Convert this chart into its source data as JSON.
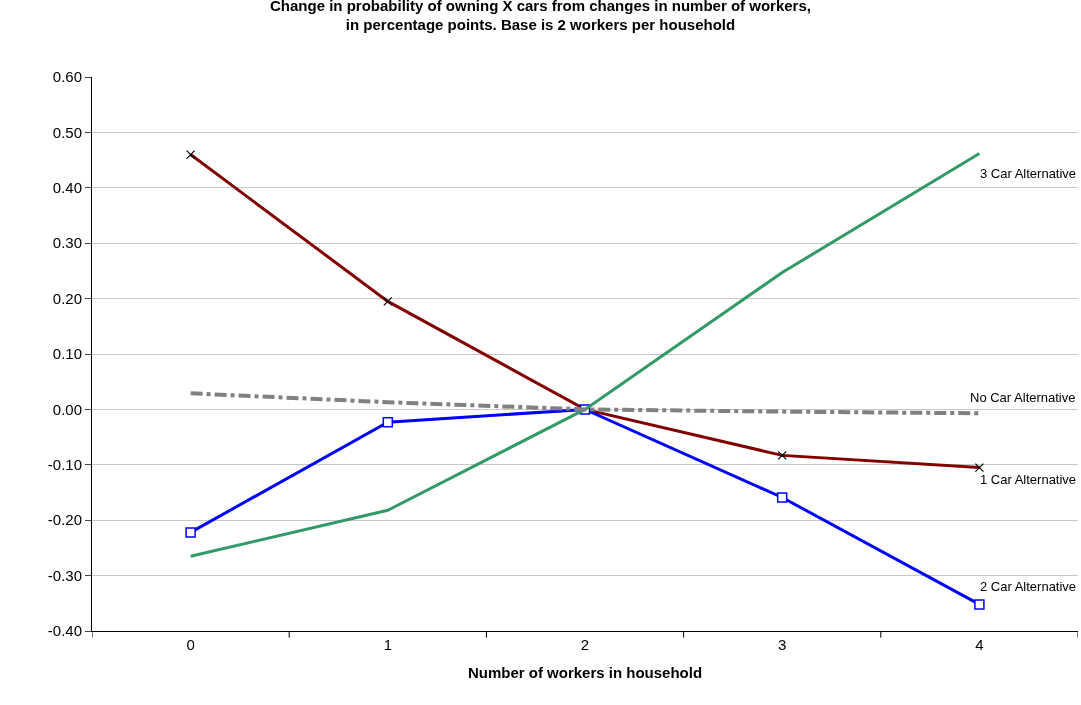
{
  "chart_data": {
    "type": "line",
    "title": "Change in probability of owning X cars from changes in number of workers,\nin percentage points. Base is 2 workers per household",
    "xlabel": "Number of workers in household",
    "categories": [
      "0",
      "1",
      "2",
      "3",
      "4"
    ],
    "series": [
      {
        "name": "1 Car Alternative",
        "color": "#800000",
        "marker": "cross",
        "line_style": "solid",
        "values": [
          0.46,
          0.195,
          0.0,
          -0.083,
          -0.105
        ]
      },
      {
        "name": "2 Car Alternative",
        "color": "#0000ff",
        "marker": "square",
        "line_style": "solid",
        "values": [
          -0.222,
          -0.023,
          0.0,
          -0.159,
          -0.352
        ]
      },
      {
        "name": "3 Car Alternative",
        "color": "#339966",
        "marker": "none",
        "line_style": "solid",
        "values": [
          -0.265,
          -0.182,
          0.0,
          0.247,
          0.462
        ]
      },
      {
        "name": "No Car Alternative",
        "color": "#808080",
        "marker": "none",
        "line_style": "dashed",
        "values": [
          0.029,
          0.013,
          0.0,
          -0.004,
          -0.007
        ]
      }
    ],
    "ylim": [
      -0.4,
      0.6
    ],
    "yticks": [
      {
        "value": -0.4,
        "label": "-0.40"
      },
      {
        "value": -0.3,
        "label": "-0.30"
      },
      {
        "value": -0.2,
        "label": "-0.20"
      },
      {
        "value": -0.1,
        "label": "-0.10"
      },
      {
        "value": 0,
        "label": "0.00"
      },
      {
        "value": 0.1,
        "label": "0.10"
      },
      {
        "value": 0.2,
        "label": "0.20"
      },
      {
        "value": 0.3,
        "label": "0.30"
      },
      {
        "value": 0.4,
        "label": "0.40"
      },
      {
        "value": 0.5,
        "label": "0.50"
      },
      {
        "value": 0.6,
        "label": "0.60"
      }
    ],
    "grid": "y",
    "legend": false
  }
}
